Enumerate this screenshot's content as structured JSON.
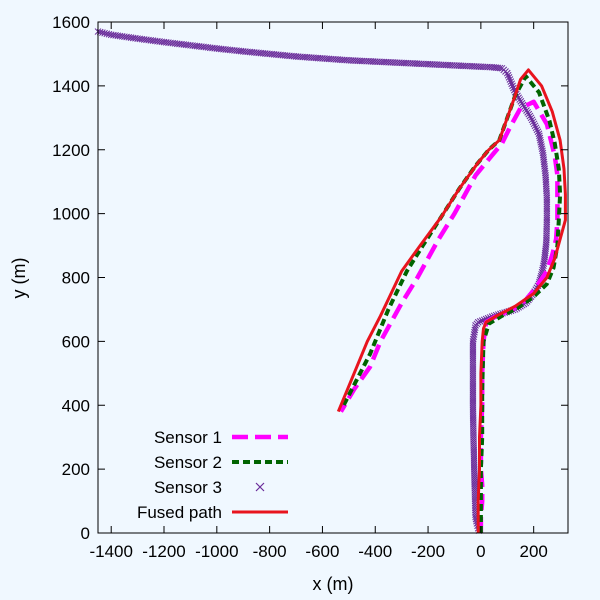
{
  "chart_data": {
    "type": "line",
    "xlabel": "x (m)",
    "ylabel": "y (m)",
    "xlim": [
      -1450,
      330
    ],
    "ylim": [
      0,
      1600
    ],
    "xticks": [
      -1400,
      -1200,
      -1000,
      -800,
      -600,
      -400,
      -200,
      0,
      200
    ],
    "yticks": [
      0,
      200,
      400,
      600,
      800,
      1000,
      1200,
      1400,
      1600
    ],
    "grid": false,
    "legend_position": "bottom-left",
    "series": [
      {
        "name": "Sensor 1",
        "style": "long-dash",
        "color": "#ff00ff",
        "x": [
          0,
          0,
          5,
          5,
          0,
          0,
          5,
          5,
          10,
          20,
          60,
          120,
          170,
          210,
          250,
          270,
          285,
          290,
          290,
          290,
          280,
          250,
          200,
          150,
          110,
          80,
          40,
          -20,
          -100,
          -160,
          -240,
          -300,
          -380,
          -420,
          -480,
          -530
        ],
        "y": [
          0,
          50,
          100,
          150,
          200,
          300,
          400,
          500,
          600,
          660,
          680,
          700,
          730,
          770,
          820,
          870,
          920,
          980,
          1050,
          1120,
          1180,
          1280,
          1350,
          1330,
          1270,
          1220,
          1180,
          1120,
          1000,
          920,
          800,
          720,
          600,
          520,
          450,
          380
        ]
      },
      {
        "name": "Sensor 2",
        "style": "short-dash",
        "color": "#006400",
        "x": [
          0,
          0,
          0,
          5,
          5,
          10,
          30,
          80,
          140,
          200,
          250,
          275,
          290,
          295,
          300,
          295,
          280,
          260,
          220,
          170,
          130,
          100,
          70,
          30,
          -20,
          -80,
          -150,
          -220,
          -280,
          -350,
          -420,
          -470,
          -520
        ],
        "y": [
          0,
          100,
          200,
          300,
          450,
          600,
          655,
          680,
          705,
          740,
          780,
          830,
          900,
          980,
          1060,
          1140,
          1220,
          1290,
          1380,
          1430,
          1370,
          1300,
          1230,
          1200,
          1150,
          1080,
          990,
          900,
          820,
          700,
          560,
          480,
          400
        ]
      },
      {
        "name": "Sensor 3",
        "style": "points",
        "color": "#6a2c9a",
        "x": [
          -1450,
          -1400,
          -1300,
          -1200,
          -1100,
          -1000,
          -900,
          -800,
          -700,
          -600,
          -500,
          -400,
          -300,
          -200,
          -100,
          -50,
          0,
          50,
          80,
          100,
          110,
          130,
          160,
          190,
          220,
          235,
          245,
          250,
          250,
          248,
          240,
          230,
          220,
          200,
          170,
          130,
          90,
          50,
          20,
          -10,
          -20,
          -30,
          -30,
          -30,
          -28,
          -25,
          -22,
          -20,
          -15,
          -10,
          -5
        ],
        "y": [
          1570,
          1560,
          1548,
          1537,
          1527,
          1517,
          1508,
          1500,
          1492,
          1486,
          1480,
          1476,
          1472,
          1468,
          1464,
          1462,
          1460,
          1458,
          1455,
          1440,
          1420,
          1380,
          1340,
          1300,
          1250,
          1190,
          1120,
          1050,
          980,
          910,
          850,
          810,
          780,
          750,
          720,
          700,
          690,
          680,
          670,
          660,
          650,
          600,
          500,
          400,
          300,
          200,
          100,
          50,
          30,
          15,
          0
        ]
      },
      {
        "name": "Fused path",
        "style": "solid",
        "color": "#e8141e",
        "x": [
          -10,
          -10,
          -5,
          -5,
          0,
          0,
          5,
          10,
          20,
          60,
          130,
          200,
          250,
          280,
          300,
          320,
          320,
          315,
          300,
          270,
          230,
          180,
          150,
          130,
          100,
          70,
          30,
          -10,
          -80,
          -150,
          -230,
          -300,
          -380,
          -430,
          -490,
          -540
        ],
        "y": [
          0,
          100,
          200,
          300,
          400,
          500,
          600,
          640,
          660,
          680,
          710,
          750,
          800,
          860,
          920,
          980,
          1060,
          1140,
          1230,
          1320,
          1400,
          1450,
          1420,
          1370,
          1300,
          1230,
          1200,
          1160,
          1080,
          990,
          900,
          820,
          680,
          600,
          480,
          380
        ]
      }
    ]
  }
}
